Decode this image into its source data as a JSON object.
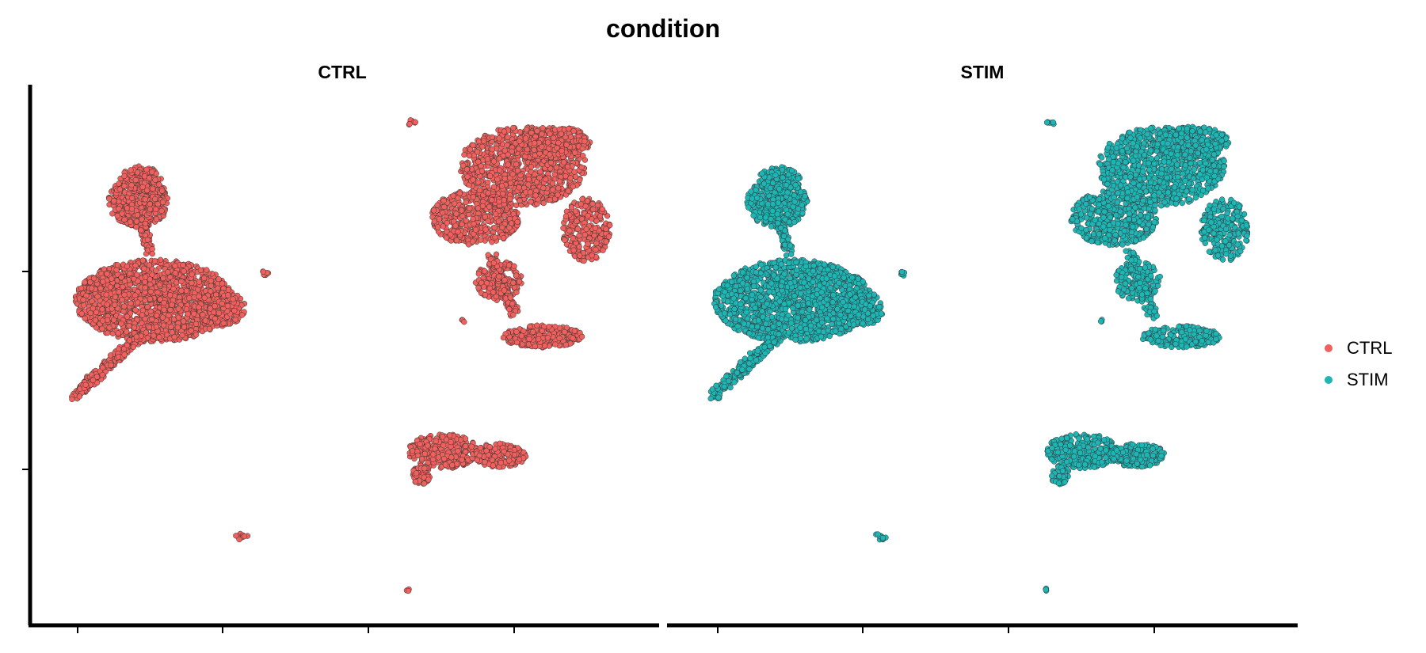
{
  "title": "condition",
  "chart_data": {
    "type": "scatter",
    "title": "condition",
    "xlabel": "",
    "ylabel": "",
    "facets": [
      "CTRL",
      "STIM"
    ],
    "x_ticks": [
      "",
      "",
      "",
      ""
    ],
    "y_ticks": [
      "",
      ""
    ],
    "grid": false,
    "legend_position": "right",
    "series": [
      {
        "name": "CTRL",
        "color": "#F0605D",
        "facet": "CTRL"
      },
      {
        "name": "STIM",
        "color": "#1EB5B5",
        "facet": "STIM"
      }
    ]
  },
  "legend": {
    "items": [
      {
        "label": "CTRL",
        "color": "#F0605D"
      },
      {
        "label": "STIM",
        "color": "#1EB5B5"
      }
    ]
  }
}
